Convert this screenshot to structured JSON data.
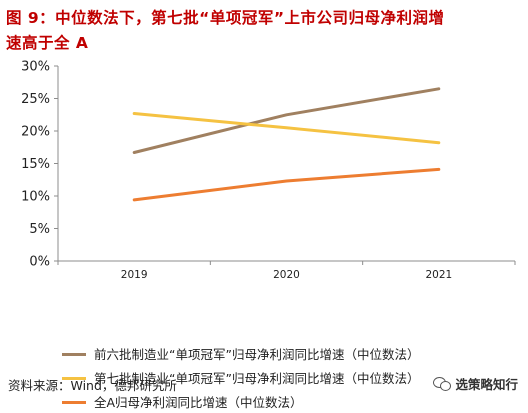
{
  "header": {
    "title_line1": "图 9：中位数法下，第七批“单项冠军”上市公司归母净利润增",
    "title_line2": "速高于全 A"
  },
  "footer": {
    "source": "资料来源：Wind，德邦研究所",
    "watermark": "选策略知行"
  },
  "colors": {
    "title": "#c00000",
    "series": [
      "#a08060",
      "#f5c242",
      "#ed7d31"
    ],
    "axis": "#8c8c8c"
  },
  "icons": {
    "watermark": "wechat-icon"
  },
  "chart_data": {
    "type": "line",
    "categories": [
      "2019",
      "2020",
      "2021"
    ],
    "y_ticks": [
      "0%",
      "5%",
      "10%",
      "15%",
      "20%",
      "25%",
      "30%"
    ],
    "ylim": [
      0,
      30
    ],
    "y_unit": "%",
    "grid": false,
    "legend_position": "bottom-left",
    "series": [
      {
        "name": "前六批制造业“单项冠军”归母净利润同比增速（中位数法）",
        "values": [
          16.7,
          22.5,
          26.5
        ]
      },
      {
        "name": "第七批制造业“单项冠军”归母净利润同比增速（中位数法）",
        "values": [
          22.7,
          20.5,
          18.2
        ]
      },
      {
        "name": "全A归母净利润同比增速（中位数法）",
        "values": [
          9.4,
          12.3,
          14.1
        ]
      }
    ]
  }
}
